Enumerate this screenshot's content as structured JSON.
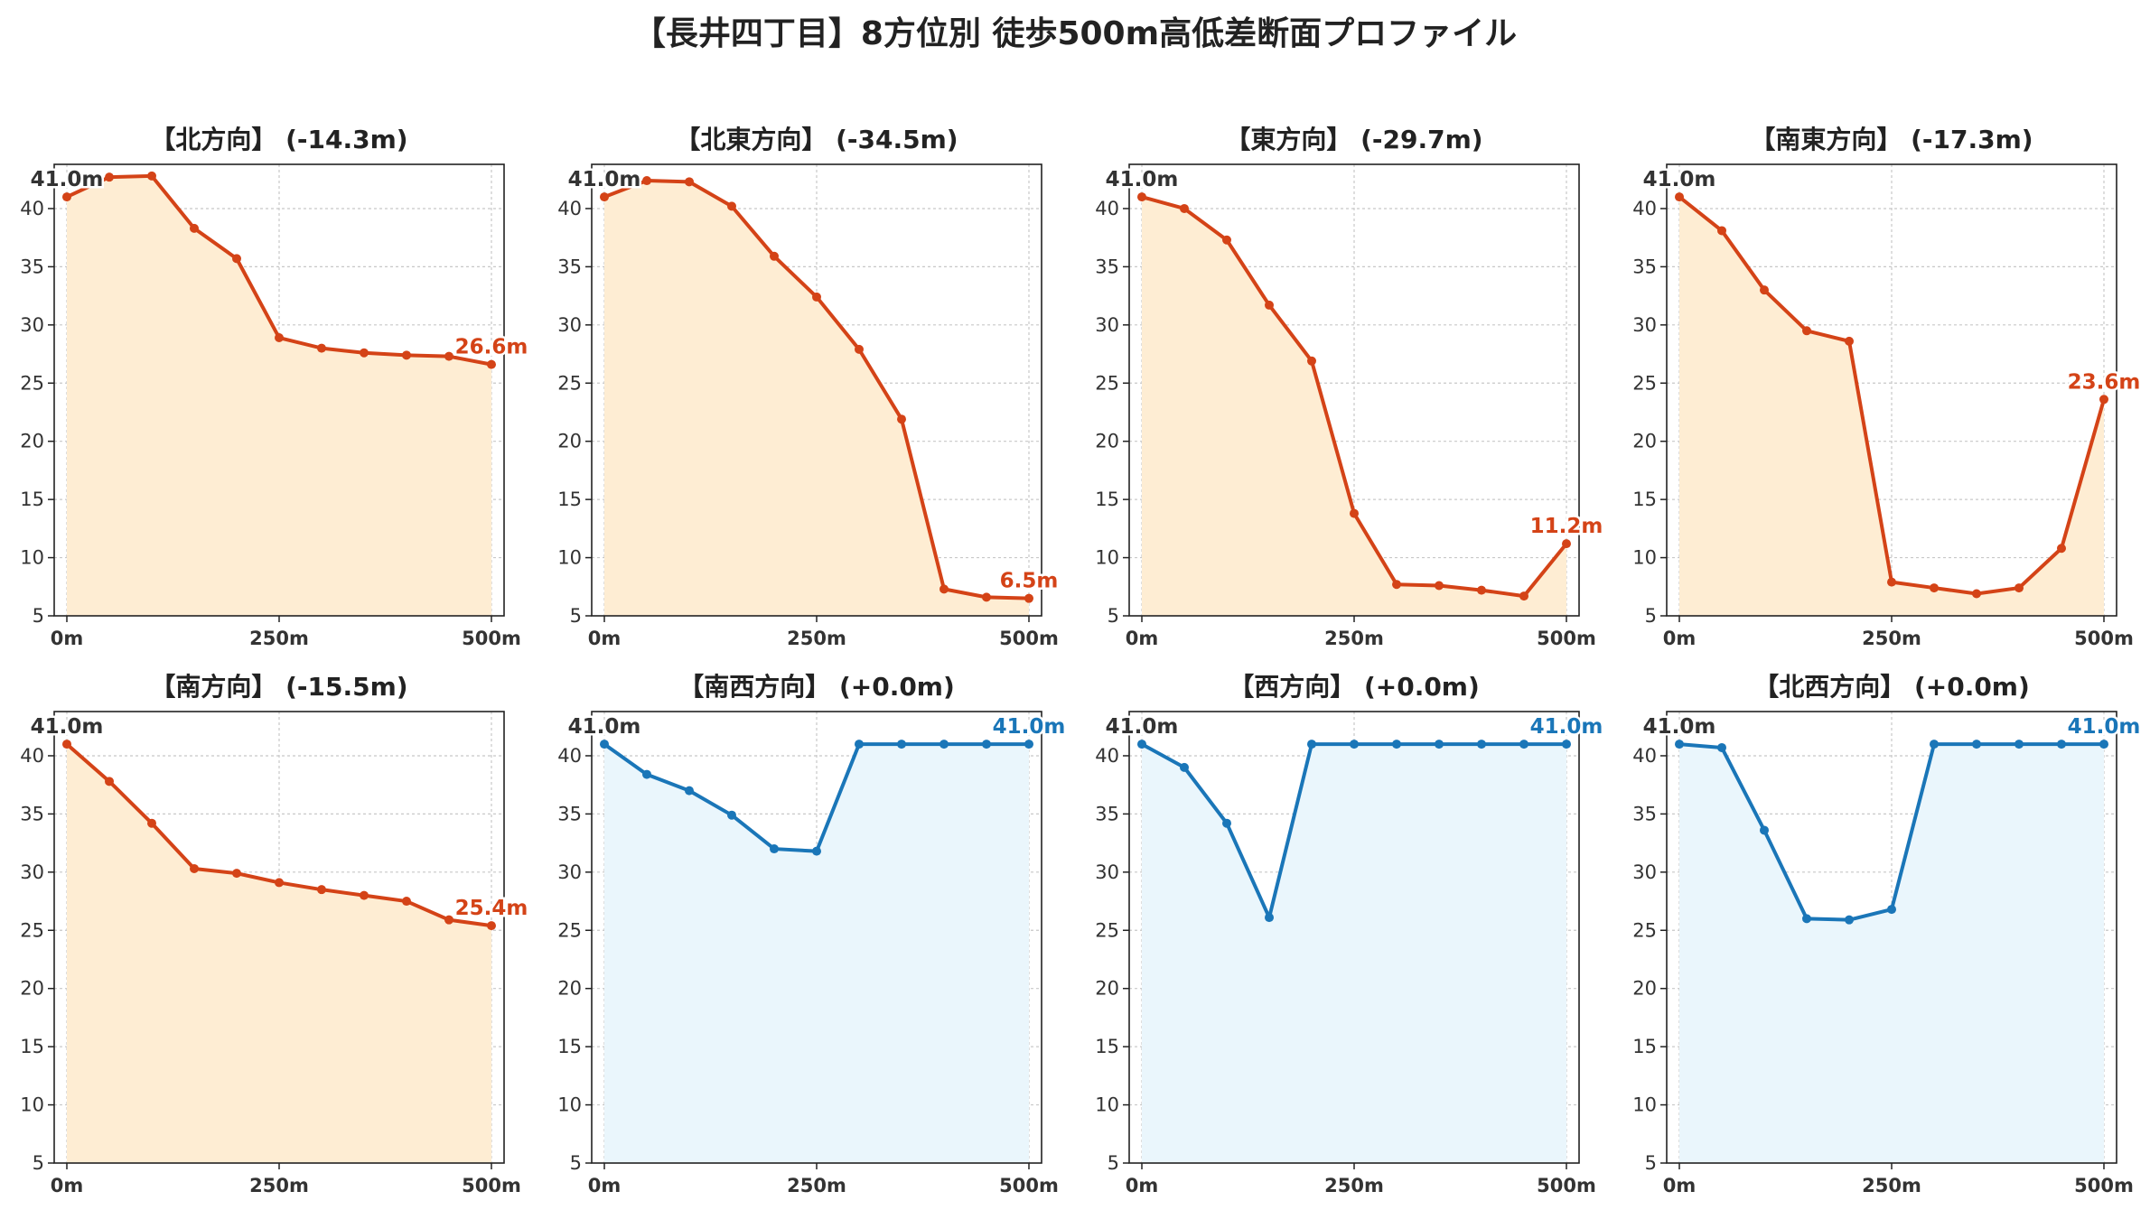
{
  "title": "【長井四丁目】8方位別 徒歩500m高低差断面プロファイル",
  "colors": {
    "down_line": "#d44317",
    "down_fill": "#feedd3",
    "flat_line": "#1a76b8",
    "flat_fill": "#eaf6fc",
    "start_label": "#333333"
  },
  "chart_data": [
    {
      "type": "area",
      "title": "【北方向】 (-14.3m)",
      "style": "down",
      "x": [
        0,
        50,
        100,
        150,
        200,
        250,
        300,
        350,
        400,
        450,
        500
      ],
      "y": [
        41.0,
        42.7,
        42.8,
        38.3,
        35.7,
        28.9,
        28.0,
        27.6,
        27.4,
        27.3,
        26.6
      ],
      "start_label": "41.0m",
      "end_label": "26.6m",
      "xticks": [
        "0m",
        "250m",
        "500m"
      ],
      "yticks": [
        "5",
        "10",
        "15",
        "20",
        "25",
        "30",
        "35",
        "40"
      ],
      "ylim": [
        5,
        43.8
      ],
      "grid": true
    },
    {
      "type": "area",
      "title": "【北東方向】 (-34.5m)",
      "style": "down",
      "x": [
        0,
        50,
        100,
        150,
        200,
        250,
        300,
        350,
        400,
        450,
        500
      ],
      "y": [
        41.0,
        42.4,
        42.3,
        40.2,
        35.9,
        32.4,
        27.9,
        21.9,
        7.3,
        6.6,
        6.5
      ],
      "start_label": "41.0m",
      "end_label": "6.5m",
      "xticks": [
        "0m",
        "250m",
        "500m"
      ],
      "yticks": [
        "5",
        "10",
        "15",
        "20",
        "25",
        "30",
        "35",
        "40"
      ],
      "ylim": [
        5,
        43.8
      ],
      "grid": true
    },
    {
      "type": "area",
      "title": "【東方向】 (-29.7m)",
      "style": "down",
      "x": [
        0,
        50,
        100,
        150,
        200,
        250,
        300,
        350,
        400,
        450,
        500
      ],
      "y": [
        41.0,
        40.0,
        37.3,
        31.7,
        26.9,
        13.8,
        7.7,
        7.6,
        7.2,
        6.7,
        11.2
      ],
      "start_label": "41.0m",
      "end_label": "11.2m",
      "xticks": [
        "0m",
        "250m",
        "500m"
      ],
      "yticks": [
        "5",
        "10",
        "15",
        "20",
        "25",
        "30",
        "35",
        "40"
      ],
      "ylim": [
        5,
        43.8
      ],
      "grid": true
    },
    {
      "type": "area",
      "title": "【南東方向】 (-17.3m)",
      "style": "down",
      "x": [
        0,
        50,
        100,
        150,
        200,
        250,
        300,
        350,
        400,
        450,
        500
      ],
      "y": [
        41.0,
        38.1,
        33.0,
        29.5,
        28.6,
        7.9,
        7.4,
        6.9,
        7.4,
        10.8,
        23.6
      ],
      "start_label": "41.0m",
      "end_label": "23.6m",
      "xticks": [
        "0m",
        "250m",
        "500m"
      ],
      "yticks": [
        "5",
        "10",
        "15",
        "20",
        "25",
        "30",
        "35",
        "40"
      ],
      "ylim": [
        5,
        43.8
      ],
      "grid": true
    },
    {
      "type": "area",
      "title": "【南方向】 (-15.5m)",
      "style": "down",
      "x": [
        0,
        50,
        100,
        150,
        200,
        250,
        300,
        350,
        400,
        450,
        500
      ],
      "y": [
        41.0,
        37.8,
        34.2,
        30.3,
        29.9,
        29.1,
        28.5,
        28.0,
        27.5,
        25.9,
        25.4
      ],
      "start_label": "41.0m",
      "end_label": "25.4m",
      "xticks": [
        "0m",
        "250m",
        "500m"
      ],
      "yticks": [
        "5",
        "10",
        "15",
        "20",
        "25",
        "30",
        "35",
        "40"
      ],
      "ylim": [
        5,
        43.8
      ],
      "grid": true
    },
    {
      "type": "area",
      "title": "【南西方向】 (+0.0m)",
      "style": "flat",
      "x": [
        0,
        50,
        100,
        150,
        200,
        250,
        300,
        350,
        400,
        450,
        500
      ],
      "y": [
        41.0,
        38.4,
        37.0,
        34.9,
        32.0,
        31.8,
        41.0,
        41.0,
        41.0,
        41.0,
        41.0
      ],
      "start_label": "41.0m",
      "end_label": "41.0m",
      "xticks": [
        "0m",
        "250m",
        "500m"
      ],
      "yticks": [
        "5",
        "10",
        "15",
        "20",
        "25",
        "30",
        "35",
        "40"
      ],
      "ylim": [
        5,
        43.8
      ],
      "grid": true
    },
    {
      "type": "area",
      "title": "【西方向】 (+0.0m)",
      "style": "flat",
      "x": [
        0,
        50,
        100,
        150,
        200,
        250,
        300,
        350,
        400,
        450,
        500
      ],
      "y": [
        41.0,
        39.0,
        34.2,
        26.1,
        41.0,
        41.0,
        41.0,
        41.0,
        41.0,
        41.0,
        41.0
      ],
      "start_label": "41.0m",
      "end_label": "41.0m",
      "xticks": [
        "0m",
        "250m",
        "500m"
      ],
      "yticks": [
        "5",
        "10",
        "15",
        "20",
        "25",
        "30",
        "35",
        "40"
      ],
      "ylim": [
        5,
        43.8
      ],
      "grid": true
    },
    {
      "type": "area",
      "title": "【北西方向】 (+0.0m)",
      "style": "flat",
      "x": [
        0,
        50,
        100,
        150,
        200,
        250,
        300,
        350,
        400,
        450,
        500
      ],
      "y": [
        41.0,
        40.7,
        33.6,
        26.0,
        25.9,
        26.8,
        41.0,
        41.0,
        41.0,
        41.0,
        41.0
      ],
      "start_label": "41.0m",
      "end_label": "41.0m",
      "xticks": [
        "0m",
        "250m",
        "500m"
      ],
      "yticks": [
        "5",
        "10",
        "15",
        "20",
        "25",
        "30",
        "35",
        "40"
      ],
      "ylim": [
        5,
        43.8
      ],
      "grid": true
    }
  ]
}
